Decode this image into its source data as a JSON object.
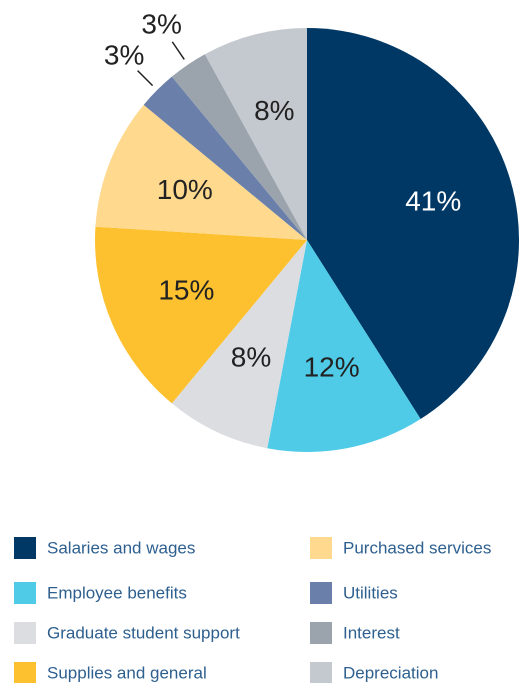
{
  "chart_data": {
    "type": "pie",
    "categories": [
      "Salaries and wages",
      "Employee benefits",
      "Graduate student support",
      "Supplies and general",
      "Purchased services",
      "Utilities",
      "Interest",
      "Depreciation"
    ],
    "values": [
      41,
      12,
      8,
      15,
      10,
      3,
      3,
      8
    ],
    "value_labels": [
      "41%",
      "12%",
      "8%",
      "15%",
      "10%",
      "3%",
      "3%",
      "8%"
    ],
    "colors": [
      "#003865",
      "#4fcbe8",
      "#dcdde1",
      "#fdc12f",
      "#fed98e",
      "#6a80aa",
      "#9ba4ac",
      "#c4c8cf"
    ]
  }
}
